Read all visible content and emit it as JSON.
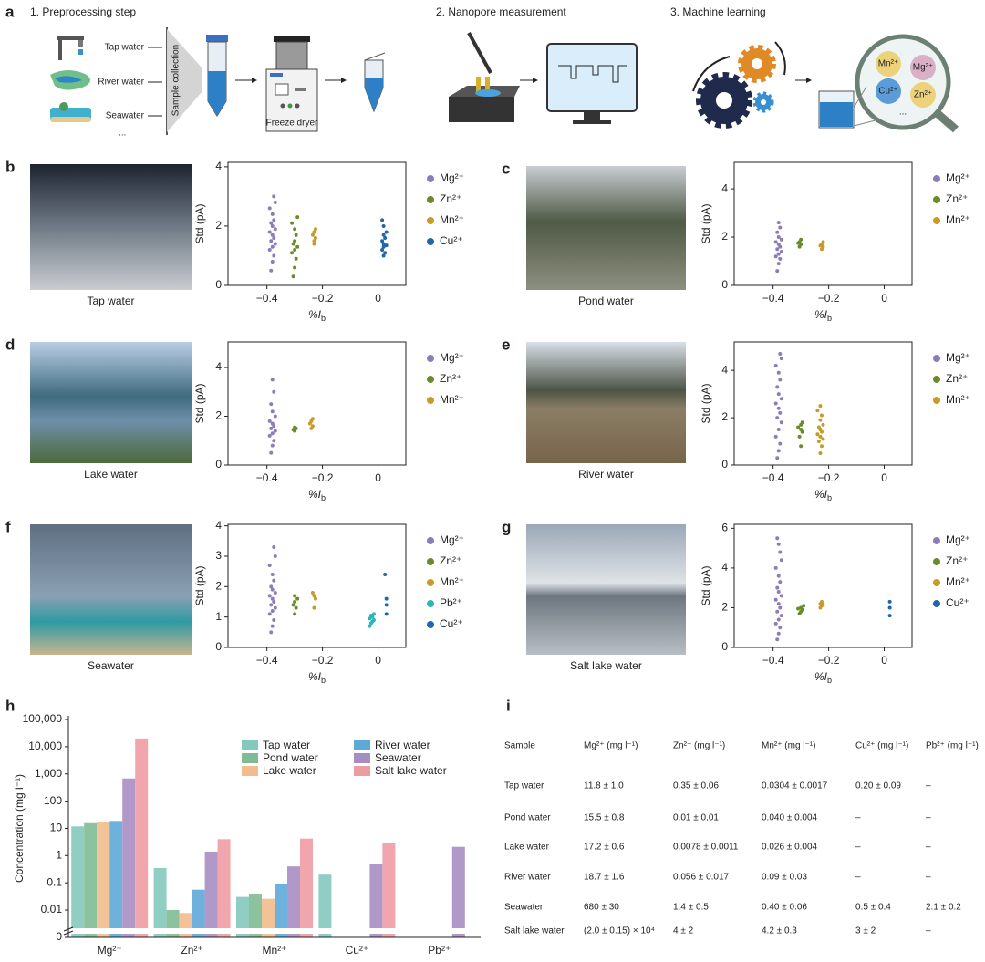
{
  "schematic": {
    "panel": "a",
    "steps": [
      "1. Preprocessing step",
      "2. Nanopore measurement",
      "3. Machine learning"
    ],
    "sources": [
      "Tap water",
      "River water",
      "Seawater",
      "..."
    ],
    "collection": "Sample collection",
    "dryer": "Freeze dryer",
    "ions": [
      "Mn²⁺",
      "Mg²⁺",
      "Cu²⁺",
      "Zn²⁺",
      "..."
    ]
  },
  "chart_data": [
    {
      "type": "scatter",
      "panel": "b",
      "photo": {
        "caption": "Tap water"
      },
      "ylabel": "Std (pA)",
      "xlabel": {
        "main": "%I",
        "sub": "b"
      },
      "xlim": [
        -0.54,
        0.1
      ],
      "ylim": [
        0,
        4.15
      ],
      "xticks": [
        {
          "value": -0.4,
          "label": "−0.4"
        },
        {
          "value": -0.2,
          "label": "−0.2"
        },
        0
      ],
      "yticks": [
        0,
        2,
        4
      ],
      "series": [
        {
          "name": "Mg²⁺",
          "color": "#8c7db8",
          "x": [
            -0.385,
            -0.38,
            -0.375,
            -0.39,
            -0.38,
            -0.37,
            -0.385,
            -0.375,
            -0.38,
            -0.39,
            -0.37,
            -0.38,
            -0.385,
            -0.375,
            -0.38,
            -0.39,
            -0.37,
            -0.375
          ],
          "values": [
            0.5,
            0.8,
            1.0,
            1.2,
            1.3,
            1.4,
            1.5,
            1.6,
            1.7,
            1.8,
            1.9,
            2.0,
            2.1,
            2.2,
            2.4,
            2.6,
            2.8,
            3.0
          ]
        },
        {
          "name": "Zn²⁺",
          "color": "#6b8a2a",
          "x": [
            -0.305,
            -0.3,
            -0.295,
            -0.31,
            -0.3,
            -0.29,
            -0.305,
            -0.3,
            -0.295,
            -0.3,
            -0.31,
            -0.29
          ],
          "values": [
            0.3,
            0.6,
            0.9,
            1.1,
            1.2,
            1.3,
            1.4,
            1.5,
            1.7,
            1.9,
            2.1,
            2.3
          ]
        },
        {
          "name": "Mn²⁺",
          "color": "#c79a2a",
          "x": [
            -0.23,
            -0.23,
            -0.225,
            -0.235,
            -0.23,
            -0.225
          ],
          "values": [
            1.4,
            1.5,
            1.6,
            1.7,
            1.8,
            1.9
          ]
        },
        {
          "name": "Cu²⁺",
          "color": "#1f67a8",
          "x": [
            0.02,
            0.025,
            0.015,
            0.02,
            0.03,
            0.02,
            0.015,
            0.025,
            0.02,
            0.03,
            0.02,
            0.015
          ],
          "values": [
            1.0,
            1.1,
            1.2,
            1.3,
            1.35,
            1.4,
            1.5,
            1.6,
            1.7,
            1.8,
            2.0,
            2.2
          ]
        }
      ]
    },
    {
      "type": "scatter",
      "panel": "c",
      "photo": {
        "caption": "Pond water"
      },
      "ylabel": "Std (pA)",
      "xlabel": {
        "main": "%I",
        "sub": "b"
      },
      "xlim": [
        -0.54,
        0.1
      ],
      "ylim": [
        0,
        5.1
      ],
      "xticks": [
        {
          "value": -0.4,
          "label": "−0.4"
        },
        {
          "value": -0.2,
          "label": "−0.2"
        },
        0
      ],
      "yticks": [
        0,
        2,
        4
      ],
      "series": [
        {
          "name": "Mg²⁺",
          "color": "#8c7db8",
          "x": [
            -0.385,
            -0.38,
            -0.375,
            -0.39,
            -0.38,
            -0.37,
            -0.385,
            -0.375,
            -0.38,
            -0.39,
            -0.37,
            -0.38,
            -0.385,
            -0.375,
            -0.38
          ],
          "values": [
            0.6,
            0.9,
            1.1,
            1.2,
            1.3,
            1.4,
            1.5,
            1.6,
            1.7,
            1.8,
            1.9,
            2.0,
            2.2,
            2.4,
            2.6
          ]
        },
        {
          "name": "Zn²⁺",
          "color": "#6b8a2a",
          "x": [
            -0.305,
            -0.3,
            -0.31,
            -0.305,
            -0.3
          ],
          "values": [
            1.6,
            1.7,
            1.75,
            1.8,
            1.9
          ]
        },
        {
          "name": "Mn²⁺",
          "color": "#c79a2a",
          "x": [
            -0.225,
            -0.22,
            -0.23,
            -0.225,
            -0.22
          ],
          "values": [
            1.5,
            1.6,
            1.65,
            1.7,
            1.8
          ]
        }
      ]
    },
    {
      "type": "scatter",
      "panel": "d",
      "photo": {
        "caption": "Lake water"
      },
      "ylabel": "Std (pA)",
      "xlabel": {
        "main": "%I",
        "sub": "b"
      },
      "xlim": [
        -0.54,
        0.1
      ],
      "ylim": [
        0,
        5.05
      ],
      "xticks": [
        {
          "value": -0.4,
          "label": "−0.4"
        },
        {
          "value": -0.2,
          "label": "−0.2"
        },
        0
      ],
      "yticks": [
        0,
        2,
        4
      ],
      "series": [
        {
          "name": "Mg²⁺",
          "color": "#8c7db8",
          "x": [
            -0.385,
            -0.38,
            -0.375,
            -0.39,
            -0.38,
            -0.37,
            -0.385,
            -0.375,
            -0.38,
            -0.39,
            -0.37,
            -0.38,
            -0.385,
            -0.375,
            -0.38
          ],
          "values": [
            0.5,
            0.8,
            1.0,
            1.2,
            1.3,
            1.4,
            1.5,
            1.6,
            1.7,
            1.8,
            2.0,
            2.2,
            2.5,
            3.0,
            3.5
          ]
        },
        {
          "name": "Zn²⁺",
          "color": "#6b8a2a",
          "x": [
            -0.3,
            -0.305,
            -0.295,
            -0.3
          ],
          "values": [
            1.4,
            1.45,
            1.5,
            1.55
          ]
        },
        {
          "name": "Mn²⁺",
          "color": "#c79a2a",
          "x": [
            -0.24,
            -0.235,
            -0.245,
            -0.24,
            -0.235
          ],
          "values": [
            1.5,
            1.6,
            1.7,
            1.8,
            1.9
          ]
        }
      ]
    },
    {
      "type": "scatter",
      "panel": "e",
      "photo": {
        "caption": "River water"
      },
      "ylabel": "Std (pA)",
      "xlabel": {
        "main": "%I",
        "sub": "b"
      },
      "xlim": [
        -0.54,
        0.1
      ],
      "ylim": [
        0,
        5.2
      ],
      "xticks": [
        {
          "value": -0.4,
          "label": "−0.4"
        },
        {
          "value": -0.2,
          "label": "−0.2"
        },
        0
      ],
      "yticks": [
        0,
        2,
        4
      ],
      "series": [
        {
          "name": "Mg²⁺",
          "color": "#8c7db8",
          "x": [
            -0.385,
            -0.38,
            -0.375,
            -0.39,
            -0.38,
            -0.37,
            -0.385,
            -0.375,
            -0.38,
            -0.39,
            -0.37,
            -0.38,
            -0.385,
            -0.375,
            -0.38,
            -0.39,
            -0.37,
            -0.375
          ],
          "values": [
            0.3,
            0.6,
            0.9,
            1.2,
            1.5,
            1.8,
            2.0,
            2.2,
            2.4,
            2.6,
            2.8,
            3.0,
            3.3,
            3.6,
            3.9,
            4.2,
            4.5,
            4.7
          ]
        },
        {
          "name": "Zn²⁺",
          "color": "#6b8a2a",
          "x": [
            -0.3,
            -0.305,
            -0.295,
            -0.3,
            -0.31,
            -0.3,
            -0.295
          ],
          "values": [
            0.8,
            1.2,
            1.4,
            1.5,
            1.6,
            1.7,
            1.8
          ]
        },
        {
          "name": "Mn²⁺",
          "color": "#c79a2a",
          "x": [
            -0.23,
            -0.225,
            -0.235,
            -0.22,
            -0.23,
            -0.24,
            -0.225,
            -0.23,
            -0.235,
            -0.22,
            -0.23,
            -0.225,
            -0.24,
            -0.23
          ],
          "values": [
            0.5,
            0.8,
            1.0,
            1.1,
            1.2,
            1.3,
            1.4,
            1.5,
            1.6,
            1.7,
            1.9,
            2.1,
            2.3,
            2.5
          ]
        }
      ]
    },
    {
      "type": "scatter",
      "panel": "f",
      "photo": {
        "caption": "Seawater"
      },
      "ylabel": "Std (pA)",
      "xlabel": {
        "main": "%I",
        "sub": "b"
      },
      "xlim": [
        -0.54,
        0.1
      ],
      "ylim": [
        0,
        4.05
      ],
      "xticks": [
        {
          "value": -0.4,
          "label": "−0.4"
        },
        {
          "value": -0.2,
          "label": "−0.2"
        },
        0
      ],
      "yticks": [
        0,
        1,
        2,
        3,
        4
      ],
      "series": [
        {
          "name": "Mg²⁺",
          "color": "#8c7db8",
          "x": [
            -0.385,
            -0.38,
            -0.375,
            -0.39,
            -0.38,
            -0.37,
            -0.385,
            -0.375,
            -0.38,
            -0.39,
            -0.37,
            -0.38,
            -0.385,
            -0.375,
            -0.38,
            -0.39,
            -0.37,
            -0.375
          ],
          "values": [
            0.5,
            0.7,
            0.9,
            1.1,
            1.2,
            1.3,
            1.4,
            1.5,
            1.6,
            1.7,
            1.8,
            1.9,
            2.0,
            2.2,
            2.4,
            2.7,
            3.0,
            3.3
          ]
        },
        {
          "name": "Zn²⁺",
          "color": "#6b8a2a",
          "x": [
            -0.3,
            -0.295,
            -0.305,
            -0.3,
            -0.29,
            -0.3
          ],
          "values": [
            1.1,
            1.3,
            1.4,
            1.5,
            1.6,
            1.7
          ]
        },
        {
          "name": "Mn²⁺",
          "color": "#c79a2a",
          "x": [
            -0.23,
            -0.225,
            -0.23,
            -0.235
          ],
          "values": [
            1.3,
            1.6,
            1.7,
            1.8
          ]
        },
        {
          "name": "Pb²⁺",
          "color": "#2bb5b8",
          "x": [
            -0.03,
            -0.025,
            -0.02,
            -0.015,
            -0.03,
            -0.02,
            -0.025,
            -0.015
          ],
          "values": [
            0.7,
            0.8,
            0.85,
            0.9,
            0.95,
            1.0,
            1.05,
            1.1
          ]
        },
        {
          "name": "Cu²⁺",
          "color": "#1f67a8",
          "x": [
            0.03,
            0.03,
            0.03,
            0.025
          ],
          "values": [
            1.1,
            1.4,
            1.6,
            2.4
          ]
        }
      ]
    },
    {
      "type": "scatter",
      "panel": "g",
      "photo": {
        "caption": "Salt lake water"
      },
      "ylabel": "Std (pA)",
      "xlabel": {
        "main": "%I",
        "sub": "b"
      },
      "xlim": [
        -0.54,
        0.1
      ],
      "ylim": [
        0,
        6.2
      ],
      "xticks": [
        {
          "value": -0.4,
          "label": "−0.4"
        },
        {
          "value": -0.2,
          "label": "−0.2"
        },
        0
      ],
      "yticks": [
        0,
        2,
        4,
        6
      ],
      "series": [
        {
          "name": "Mg²⁺",
          "color": "#8c7db8",
          "x": [
            -0.385,
            -0.38,
            -0.375,
            -0.39,
            -0.38,
            -0.37,
            -0.385,
            -0.375,
            -0.38,
            -0.39,
            -0.37,
            -0.38,
            -0.385,
            -0.375,
            -0.38,
            -0.39,
            -0.37,
            -0.375,
            -0.38,
            -0.385
          ],
          "values": [
            0.4,
            0.7,
            1.0,
            1.2,
            1.4,
            1.6,
            1.8,
            2.0,
            2.2,
            2.4,
            2.6,
            2.8,
            3.0,
            3.3,
            3.6,
            4.0,
            4.4,
            4.8,
            5.2,
            5.5
          ]
        },
        {
          "name": "Zn²⁺",
          "color": "#6b8a2a",
          "x": [
            -0.305,
            -0.3,
            -0.295,
            -0.31,
            -0.3,
            -0.29
          ],
          "values": [
            1.7,
            1.8,
            1.9,
            1.95,
            2.0,
            2.1
          ]
        },
        {
          "name": "Mn²⁺",
          "color": "#c79a2a",
          "x": [
            -0.23,
            -0.225,
            -0.22,
            -0.23,
            -0.225
          ],
          "values": [
            2.0,
            2.1,
            2.15,
            2.2,
            2.3
          ]
        },
        {
          "name": "Cu²⁺",
          "color": "#1f67a8",
          "x": [
            0.02,
            0.02,
            0.02
          ],
          "values": [
            1.6,
            2.0,
            2.3
          ]
        }
      ]
    },
    {
      "type": "bar",
      "panel": "h",
      "log": true,
      "ylabel": "Concentration (mg l⁻¹)",
      "categories": [
        "Mg²⁺",
        "Zn²⁺",
        "Mn²⁺",
        "Cu²⁺",
        "Pb²⁺"
      ],
      "ylim": [
        0.0025,
        100000
      ],
      "yticks": [
        {
          "value": 0,
          "label": "0"
        },
        0.01,
        0.1,
        1,
        10,
        100,
        {
          "value": 1000,
          "label": "1,000"
        },
        {
          "value": 10000,
          "label": "10,000"
        },
        {
          "value": 100000,
          "label": "100,000"
        }
      ],
      "series": [
        {
          "name": "Tap water",
          "color": "#84c9bd",
          "values": [
            11.8,
            0.35,
            0.0304,
            0.2,
            null
          ]
        },
        {
          "name": "Pond water",
          "color": "#7fbb93",
          "values": [
            15.5,
            0.01,
            0.04,
            null,
            null
          ]
        },
        {
          "name": "Lake water",
          "color": "#f2bc8c",
          "values": [
            17.2,
            0.0078,
            0.026,
            null,
            null
          ]
        },
        {
          "name": "River water",
          "color": "#5ea9d8",
          "values": [
            18.7,
            0.056,
            0.09,
            null,
            null
          ]
        },
        {
          "name": "Seawater",
          "color": "#a78dc2",
          "values": [
            680,
            1.4,
            0.4,
            0.5,
            2.1
          ]
        },
        {
          "name": "Salt lake water",
          "color": "#ee9ca3",
          "values": [
            20000,
            4,
            4.2,
            3,
            null
          ]
        }
      ]
    }
  ],
  "table": {
    "panel": "i",
    "header": [
      "Sample",
      "Mg²⁺ (mg l⁻¹)",
      "Zn²⁺ (mg l⁻¹)",
      "Mn²⁺ (mg l⁻¹)",
      "Cu²⁺ (mg l⁻¹)",
      "Pb²⁺ (mg l⁻¹)"
    ],
    "rows": [
      [
        "Tap water",
        "11.8 ± 1.0",
        "0.35 ± 0.06",
        "0.0304 ± 0.0017",
        "0.20 ± 0.09",
        "–"
      ],
      [
        "Pond water",
        "15.5 ± 0.8",
        "0.01 ± 0.01",
        "0.040 ± 0.004",
        "–",
        "–"
      ],
      [
        "Lake water",
        "17.2 ± 0.6",
        "0.0078 ± 0.0011",
        "0.026 ± 0.004",
        "–",
        "–"
      ],
      [
        "River water",
        "18.7 ± 1.6",
        "0.056 ± 0.017",
        "0.09 ± 0.03",
        "–",
        "–"
      ],
      [
        "Seawater",
        "680 ± 30",
        "1.4 ± 0.5",
        "0.40 ± 0.06",
        "0.5 ± 0.4",
        "2.1 ± 0.2"
      ],
      [
        "Salt lake water",
        "(2.0 ± 0.15) × 10⁴",
        "4 ± 2",
        "4.2 ± 0.3",
        "3 ± 2",
        "–"
      ]
    ]
  }
}
